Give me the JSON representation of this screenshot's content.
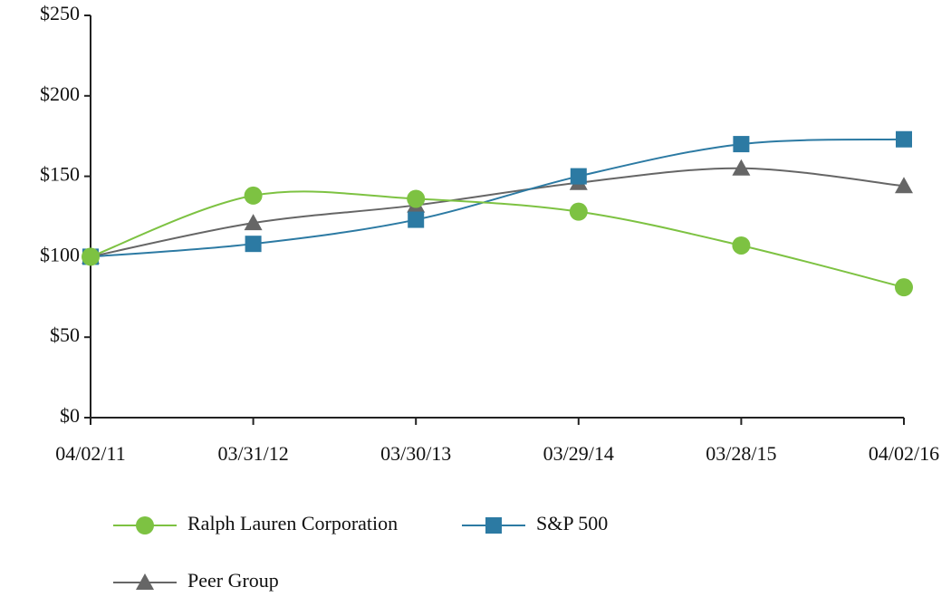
{
  "chart_data": {
    "type": "line",
    "categories": [
      "04/02/11",
      "03/31/12",
      "03/30/13",
      "03/29/14",
      "03/28/15",
      "04/02/16"
    ],
    "series": [
      {
        "name": "Ralph Lauren Corporation",
        "color": "#7dc242",
        "marker": "circle",
        "values": [
          100,
          138,
          136,
          128,
          107,
          81
        ]
      },
      {
        "name": "S&P 500",
        "color": "#2c7aa3",
        "marker": "square",
        "values": [
          100,
          108,
          123,
          150,
          170,
          173
        ]
      },
      {
        "name": "Peer Group",
        "color": "#666666",
        "marker": "triangle",
        "values": [
          100,
          121,
          132,
          146,
          155,
          144
        ]
      }
    ],
    "ylim": [
      0,
      250
    ],
    "yticks": [
      {
        "value": 0,
        "label": "$0"
      },
      {
        "value": 50,
        "label": "$50"
      },
      {
        "value": 100,
        "label": "$100"
      },
      {
        "value": 150,
        "label": "$150"
      },
      {
        "value": 200,
        "label": "$200"
      },
      {
        "value": 250,
        "label": "$250"
      }
    ],
    "smooth": true
  }
}
